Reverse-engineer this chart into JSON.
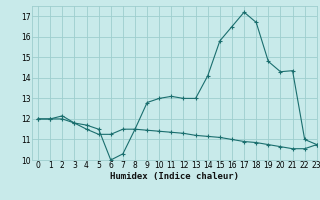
{
  "xlabel": "Humidex (Indice chaleur)",
  "background_color": "#c8eaea",
  "grid_color": "#9ecece",
  "line_color": "#1a6e6e",
  "xmin": -0.5,
  "xmax": 23,
  "ymin": 10,
  "ymax": 17.5,
  "line1_x": [
    0,
    1,
    2,
    3,
    4,
    5,
    6,
    7,
    8,
    9,
    10,
    11,
    12,
    13,
    14,
    15,
    16,
    17,
    18,
    19,
    20,
    21,
    22,
    23
  ],
  "line1_y": [
    12.0,
    12.0,
    12.0,
    11.8,
    11.7,
    11.5,
    10.0,
    10.3,
    11.5,
    12.8,
    13.0,
    13.1,
    13.0,
    13.0,
    14.1,
    15.8,
    16.5,
    17.2,
    16.7,
    14.8,
    14.3,
    14.35,
    11.0,
    10.75
  ],
  "line2_x": [
    0,
    1,
    2,
    3,
    4,
    5,
    6,
    7,
    8,
    9,
    10,
    11,
    12,
    13,
    14,
    15,
    16,
    17,
    18,
    19,
    20,
    21,
    22,
    23
  ],
  "line2_y": [
    12.0,
    12.0,
    12.15,
    11.8,
    11.5,
    11.25,
    11.25,
    11.5,
    11.5,
    11.45,
    11.4,
    11.35,
    11.3,
    11.2,
    11.15,
    11.1,
    11.0,
    10.9,
    10.85,
    10.75,
    10.65,
    10.55,
    10.55,
    10.75
  ],
  "xticks": [
    0,
    1,
    2,
    3,
    4,
    5,
    6,
    7,
    8,
    9,
    10,
    11,
    12,
    13,
    14,
    15,
    16,
    17,
    18,
    19,
    20,
    21,
    22,
    23
  ],
  "yticks": [
    10,
    11,
    12,
    13,
    14,
    15,
    16,
    17
  ],
  "tick_fontsize": 5.5,
  "xlabel_fontsize": 6.5
}
